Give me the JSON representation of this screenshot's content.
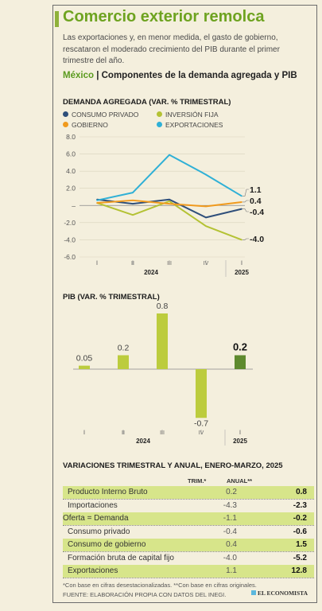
{
  "header": {
    "title": "Comercio exterior remolca",
    "lead": "Las exportaciones y, en menor medida, el gasto de gobierno, rescataron el moderado crecimiento del PIB durante el primer trimestre del año.",
    "subtitle_country": "México",
    "subtitle_text": "Componentes de la demanda agregada y PIB"
  },
  "colors": {
    "accent": "#6ea320",
    "consumo": "#2f4f7a",
    "inversion": "#b4c234",
    "gobierno": "#f09a1e",
    "exportaciones": "#2fb0d6",
    "pib_bar": "#bccc3d",
    "pib_bar_last": "#5e8a2e",
    "highlight_row": "#d7e58a"
  },
  "chart_data": [
    {
      "type": "line",
      "title": "DEMANDA AGREGADA (VAR. % TRIMESTRAL)",
      "x": [
        "I",
        "II",
        "III",
        "IV",
        "I"
      ],
      "year_groups": [
        {
          "label": "2024",
          "span": [
            0,
            3
          ]
        },
        {
          "label": "2025",
          "span": [
            4,
            4
          ]
        }
      ],
      "ylim": [
        -6.0,
        8.0
      ],
      "yticks": [
        "8.0",
        "6.0",
        "4.0",
        "2.0",
        "",
        "-2.0",
        "-4.0",
        "-6.0"
      ],
      "series": [
        {
          "name": "CONSUMO PRIVADO",
          "color": "#2f4f7a",
          "values": [
            0.7,
            0.2,
            0.7,
            -1.4,
            -0.4
          ],
          "end_label": "-0.4"
        },
        {
          "name": "INVERSIÓN FIJA",
          "color": "#b4c234",
          "values": [
            0.3,
            -1.1,
            0.5,
            -2.4,
            -4.0
          ],
          "end_label": "-4.0"
        },
        {
          "name": "GOBIERNO",
          "color": "#f09a1e",
          "values": [
            0.3,
            0.6,
            0.2,
            -0.1,
            0.4
          ],
          "end_label": "0.4"
        },
        {
          "name": "EXPORTACIONES",
          "color": "#2fb0d6",
          "values": [
            0.6,
            1.5,
            5.9,
            3.6,
            1.1
          ],
          "end_label": "1.1"
        }
      ]
    },
    {
      "type": "bar",
      "title": "PIB (VAR. % TRIMESTRAL)",
      "categories": [
        "I",
        "II",
        "III",
        "IV",
        "I"
      ],
      "year_groups": [
        {
          "label": "2024",
          "span": [
            0,
            3
          ]
        },
        {
          "label": "2025",
          "span": [
            4,
            4
          ]
        }
      ],
      "values": [
        0.05,
        0.2,
        0.8,
        -0.7,
        0.2
      ],
      "labels": [
        "0.05",
        "0.2",
        "0.8",
        "-0.7",
        "0.2"
      ],
      "ylim": [
        -0.8,
        1.0
      ]
    }
  ],
  "table": {
    "title": "VARIACIONES TRIMESTRAL Y ANUAL, ENERO-MARZO, 2025",
    "col_trim": "TRIM.*",
    "col_anual": "ANUAL**",
    "rows": [
      {
        "label": "Producto Interno Bruto",
        "trim": "0.2",
        "anual": "0.8"
      },
      {
        "label": "Importaciones",
        "trim": "-4.3",
        "anual": "-2.3"
      },
      {
        "label": "Oferta = Demanda",
        "trim": "-1.1",
        "anual": "-0.2"
      },
      {
        "label": "Consumo privado",
        "trim": "-0.4",
        "anual": "-0.6"
      },
      {
        "label": "Consumo de gobierno",
        "trim": "0.4",
        "anual": "1.5"
      },
      {
        "label": "Formación bruta de capital fijo",
        "trim": "-4.0",
        "anual": "-5.2"
      },
      {
        "label": "Exportaciones",
        "trim": "1.1",
        "anual": "12.8"
      }
    ]
  },
  "footer": {
    "note": "*Con base en cifras desestacionalizadas. **Con base en cifras originales.",
    "source": "FUENTE: ELABORACIÓN PROPIA CON DATOS DEL INEGI.",
    "brand": "EL ECONOMISTA"
  }
}
